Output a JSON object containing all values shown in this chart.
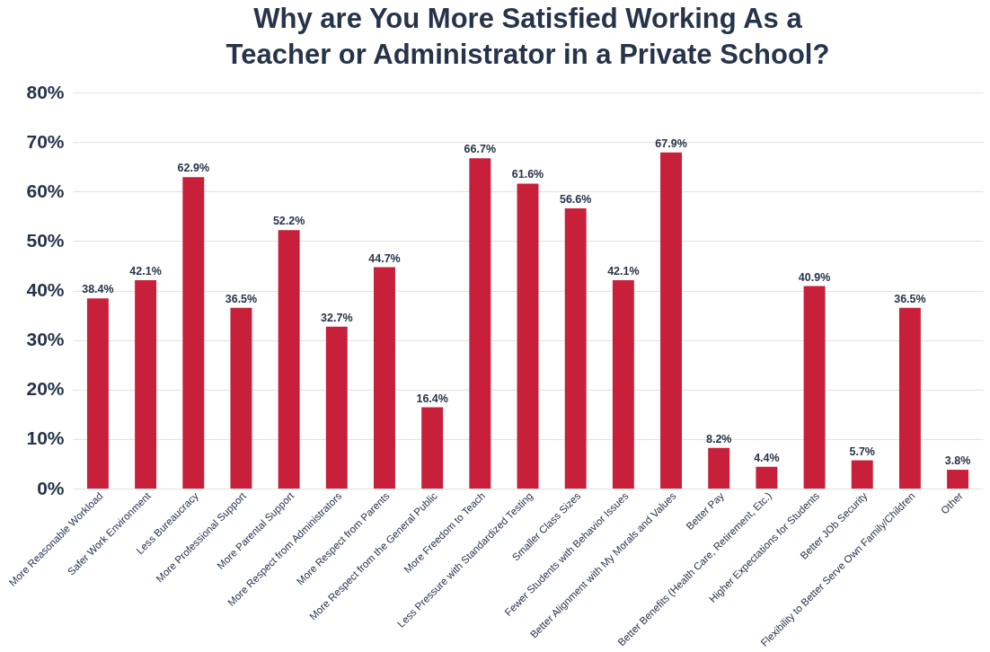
{
  "chart_data": {
    "type": "bar",
    "title": "Why are You More Satisfied Working As a Teacher or Administrator in a Private School?",
    "categories": [
      "More Reasonable Workload",
      "Safer Work Environment",
      "Less Bureaucracy",
      "More Professional Support",
      "More Parental Support",
      "More Respect from Administrators",
      "More Respect from Parents",
      "More Respect from the General Public",
      "More Freedom to Teach",
      "Less Pressure with Standardized Testing",
      "Smaller Class Sizes",
      "Fewer Students with Behavior Issues",
      "Better Alignment with My Morals and Values",
      "Better Pay",
      "Better Benefits (Health Care, Retirement, Etc.)",
      "Higher Expectations for Students",
      "Better JOb Security",
      "Flexibility to Better Serve Own Family/Children",
      "Other"
    ],
    "values": [
      38.4,
      42.1,
      62.9,
      36.5,
      52.2,
      32.7,
      44.7,
      16.4,
      66.7,
      61.6,
      56.6,
      42.1,
      67.9,
      8.2,
      4.4,
      40.9,
      5.7,
      36.5,
      3.8
    ],
    "value_labels": [
      "38.4%",
      "42.1%",
      "62.9%",
      "36.5%",
      "52.2%",
      "32.7%",
      "44.7%",
      "16.4%",
      "66.7%",
      "61.6%",
      "56.6%",
      "42.1%",
      "67.9%",
      "8.2%",
      "4.4%",
      "40.9%",
      "5.7%",
      "36.5%",
      "3.8%"
    ],
    "color": "#c8203a",
    "ylim": [
      0,
      80
    ],
    "yticks": [
      {
        "value": 0,
        "label": "0%"
      },
      {
        "value": 10,
        "label": "10%"
      },
      {
        "value": 20,
        "label": "20%"
      },
      {
        "value": 30,
        "label": "30%"
      },
      {
        "value": 40,
        "label": "40%"
      },
      {
        "value": 50,
        "label": "50%"
      },
      {
        "value": 60,
        "label": "60%"
      },
      {
        "value": 70,
        "label": "70%"
      },
      {
        "value": 80,
        "label": "80%"
      }
    ],
    "grid": "y"
  }
}
